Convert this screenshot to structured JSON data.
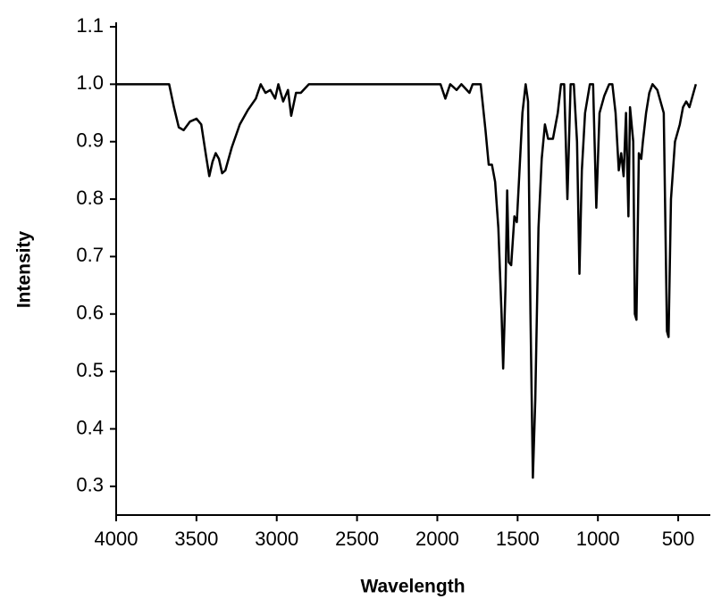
{
  "chart_data": {
    "type": "line",
    "xlabel": "Wavelength",
    "ylabel": "Intensity",
    "color": "#000000",
    "xlim": [
      4000,
      300
    ],
    "ylim": [
      0.25,
      1.1
    ],
    "xticks": [
      4000,
      3500,
      3000,
      2500,
      2000,
      1500,
      1000,
      500
    ],
    "yticks": [
      0.3,
      0.4,
      0.5,
      0.6,
      0.7,
      0.8,
      0.9,
      {
        "value": 1,
        "label": "1.0"
      },
      1.1
    ],
    "x": [
      4000,
      3700,
      3670,
      3640,
      3610,
      3580,
      3540,
      3500,
      3470,
      3440,
      3420,
      3400,
      3380,
      3360,
      3340,
      3320,
      3280,
      3230,
      3180,
      3130,
      3100,
      3070,
      3040,
      3010,
      2990,
      2960,
      2930,
      2910,
      2880,
      2850,
      2800,
      2500,
      1980,
      1950,
      1920,
      1880,
      1850,
      1800,
      1780,
      1730,
      1700,
      1680,
      1660,
      1640,
      1620,
      1600,
      1590,
      1575,
      1565,
      1555,
      1540,
      1520,
      1505,
      1490,
      1470,
      1450,
      1435,
      1420,
      1405,
      1390,
      1370,
      1350,
      1330,
      1310,
      1280,
      1250,
      1230,
      1210,
      1190,
      1170,
      1150,
      1130,
      1115,
      1100,
      1080,
      1050,
      1030,
      1010,
      990,
      960,
      930,
      910,
      890,
      870,
      855,
      840,
      825,
      810,
      800,
      780,
      770,
      760,
      745,
      730,
      720,
      700,
      680,
      660,
      630,
      610,
      590,
      570,
      560,
      545,
      520,
      490,
      470,
      450,
      430,
      410,
      390
    ],
    "values": [
      1.0,
      1.0,
      1.0,
      0.96,
      0.925,
      0.92,
      0.935,
      0.94,
      0.93,
      0.875,
      0.84,
      0.865,
      0.88,
      0.87,
      0.845,
      0.85,
      0.89,
      0.93,
      0.955,
      0.975,
      1.0,
      0.985,
      0.99,
      0.975,
      1.0,
      0.97,
      0.99,
      0.945,
      0.985,
      0.985,
      1.0,
      1.0,
      1.0,
      0.975,
      1.0,
      0.99,
      1.0,
      0.985,
      1.0,
      1.0,
      0.92,
      0.86,
      0.86,
      0.83,
      0.75,
      0.6,
      0.505,
      0.65,
      0.815,
      0.69,
      0.685,
      0.77,
      0.76,
      0.84,
      0.95,
      1.0,
      0.97,
      0.6,
      0.315,
      0.45,
      0.75,
      0.87,
      0.93,
      0.905,
      0.905,
      0.95,
      1.0,
      1.0,
      0.8,
      1.0,
      1.0,
      0.9,
      0.67,
      0.85,
      0.95,
      1.0,
      1.0,
      0.785,
      0.95,
      0.98,
      1.0,
      1.0,
      0.95,
      0.85,
      0.88,
      0.84,
      0.95,
      0.77,
      0.96,
      0.9,
      0.6,
      0.59,
      0.88,
      0.87,
      0.9,
      0.95,
      0.985,
      1.0,
      0.99,
      0.97,
      0.95,
      0.57,
      0.56,
      0.8,
      0.9,
      0.93,
      0.96,
      0.97,
      0.96,
      0.98,
      1.0
    ]
  }
}
